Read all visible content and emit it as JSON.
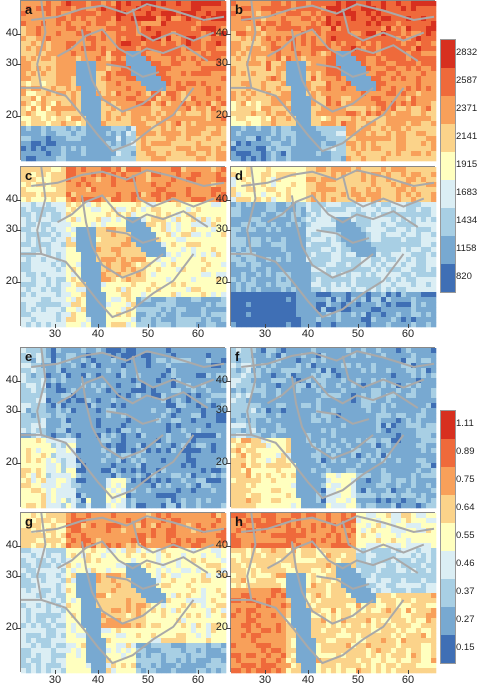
{
  "panels": [
    {
      "label": "a",
      "scheme": "warm"
    },
    {
      "label": "b",
      "scheme": "warm"
    },
    {
      "label": "c",
      "scheme": "mixed"
    },
    {
      "label": "d",
      "scheme": "cool"
    },
    {
      "label": "e",
      "scheme": "cold"
    },
    {
      "label": "f",
      "scheme": "cold2"
    },
    {
      "label": "g",
      "scheme": "mixed"
    },
    {
      "label": "h",
      "scheme": "mixed2"
    }
  ],
  "y_ticks": [
    "40",
    "30",
    "20"
  ],
  "x_ticks": [
    "30",
    "40",
    "50",
    "60"
  ],
  "legend_top": {
    "labels": [
      "2832",
      "2587",
      "2371",
      "2141",
      "1915",
      "1683",
      "1434",
      "1158",
      "820"
    ]
  },
  "legend_bottom": {
    "labels": [
      "1.11",
      "0.89",
      "0.75",
      "0.64",
      "0.55",
      "0.46",
      "0.37",
      "0.27",
      "0.15"
    ]
  },
  "colors": [
    "#d7301f",
    "#ef6a3b",
    "#f8a05a",
    "#fbd38a",
    "#ffffbf",
    "#dbeef4",
    "#a8cfe4",
    "#78a9d1",
    "#3f6fb5"
  ]
}
